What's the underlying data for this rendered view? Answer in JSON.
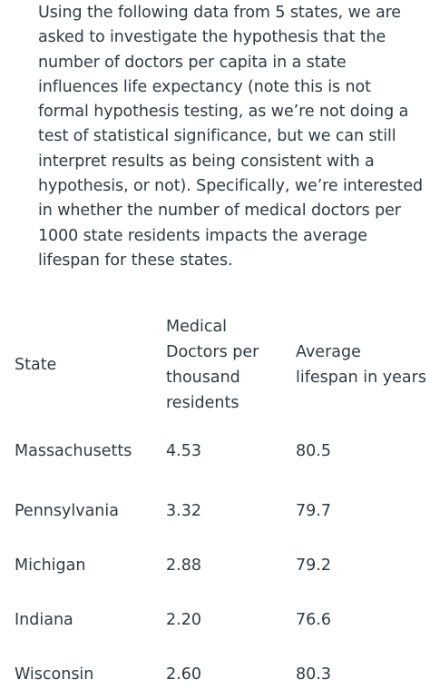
{
  "intro_text": "Using the following data from 5 states, we are asked to investigate the hypothesis that the number of doctors per capita in a state influences life expectancy (note this is not formal hypothesis testing, as we’re not doing a test of statistical significance, but we can still interpret results as being consistent with a hypothesis, or not). Specifically, we’re interested in whether the number of medical doctors per 1000 state residents impacts the average lifespan for these states.",
  "table": {
    "headers": {
      "state": "State",
      "doctors": "Medical Doctors per thousand residents",
      "lifespan": "Average lifespan in years"
    },
    "rows": [
      {
        "state": "Massachusetts",
        "doctors": "4.53",
        "lifespan": "80.5"
      },
      {
        "state": "Pennsylvania",
        "doctors": "3.32",
        "lifespan": "79.7"
      },
      {
        "state": "Michigan",
        "doctors": "2.88",
        "lifespan": "79.2"
      },
      {
        "state": "Indiana",
        "doctors": "2.20",
        "lifespan": "76.6"
      },
      {
        "state": "Wisconsin",
        "doctors": "2.60",
        "lifespan": "80.3"
      }
    ]
  }
}
